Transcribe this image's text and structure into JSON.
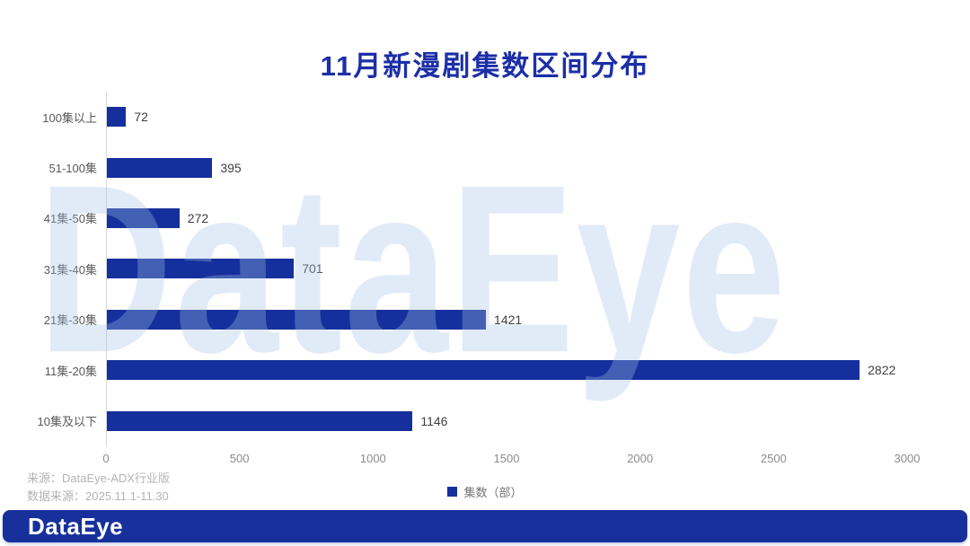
{
  "watermark": "DataEye",
  "colors": {
    "bar": "#15309c",
    "title": "#1c2fa8",
    "banner": "#17309b",
    "axis_line": "#d9d9d9"
  },
  "chart_data": {
    "type": "bar",
    "orientation": "horizontal",
    "title": "11月新漫剧集数区间分布",
    "categories": [
      "100集以上",
      "51-100集",
      "41集-50集",
      "31集-40集",
      "21集-30集",
      "11集-20集",
      "10集及以下"
    ],
    "values": [
      72,
      395,
      272,
      701,
      1421,
      2822,
      1146
    ],
    "legend": "集数（部）",
    "legend_position": "bottom-center",
    "xlabel": "",
    "ylabel": "",
    "xlim": [
      0,
      3000
    ],
    "x_ticks": [
      0,
      500,
      1000,
      1500,
      2000,
      2500,
      3000
    ],
    "grid": false
  },
  "footer": {
    "source_line1": "来源：DataEye-ADX行业版",
    "source_line2": "数据来源：2025.11.1-11.30",
    "logo": "DataEye"
  }
}
